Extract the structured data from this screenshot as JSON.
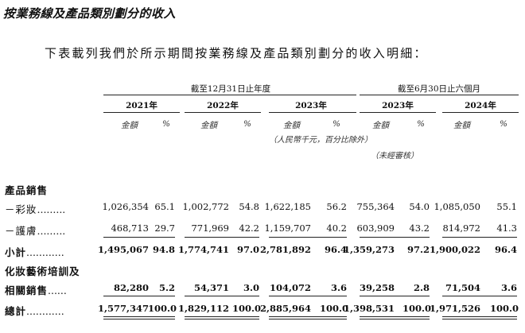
{
  "heading": "按業務線及產品類別劃分的收入",
  "intro": "下表載列我們於所示期間按業務線及產品類別劃分的收入明細：",
  "column_groups": [
    {
      "label": "截至12月31日止年度"
    },
    {
      "label": "截至6月30日止六個月"
    }
  ],
  "years": [
    "2021年",
    "2022年",
    "2023年",
    "2023年",
    "2024年"
  ],
  "amount_label": "金額",
  "percent_label": "%",
  "unit_note": "（人民幣千元，百分比除外）",
  "unaudited_note": "（未經審核）",
  "section_label": "產品銷售",
  "rows": [
    {
      "label": "－彩妝",
      "dots": ".........",
      "bold": false,
      "values": [
        "1,026,354",
        "65.1",
        "1,002,772",
        "54.8",
        "1,622,185",
        "56.2",
        "755,364",
        "54.0",
        "1,085,050",
        "55.1"
      ]
    },
    {
      "label": "－護膚",
      "dots": ".........",
      "bold": false,
      "values": [
        "468,713",
        "29.7",
        "771,969",
        "42.2",
        "1,159,707",
        "40.2",
        "603,909",
        "43.2",
        "814,972",
        "41.3"
      ]
    },
    {
      "label": "小計",
      "dots": "............",
      "bold": true,
      "values": [
        "1,495,067",
        "94.8",
        "1,774,741",
        "97.0",
        "2,781,892",
        "96.4",
        "1,359,273",
        "97.2",
        "1,900,022",
        "96.4"
      ]
    },
    {
      "label": "化妝藝術培訓及",
      "label2": "相關銷售",
      "dots": "......",
      "bold": true,
      "values": [
        "82,280",
        "5.2",
        "54,371",
        "3.0",
        "104,072",
        "3.6",
        "39,258",
        "2.8",
        "71,504",
        "3.6"
      ]
    },
    {
      "label": "總計",
      "dots": "............",
      "bold": true,
      "values": [
        "1,577,347",
        "100.0",
        "1,829,112",
        "100.0",
        "2,885,964",
        "100.0",
        "1,398,531",
        "100.0",
        "1,971,526",
        "100.0"
      ]
    }
  ]
}
